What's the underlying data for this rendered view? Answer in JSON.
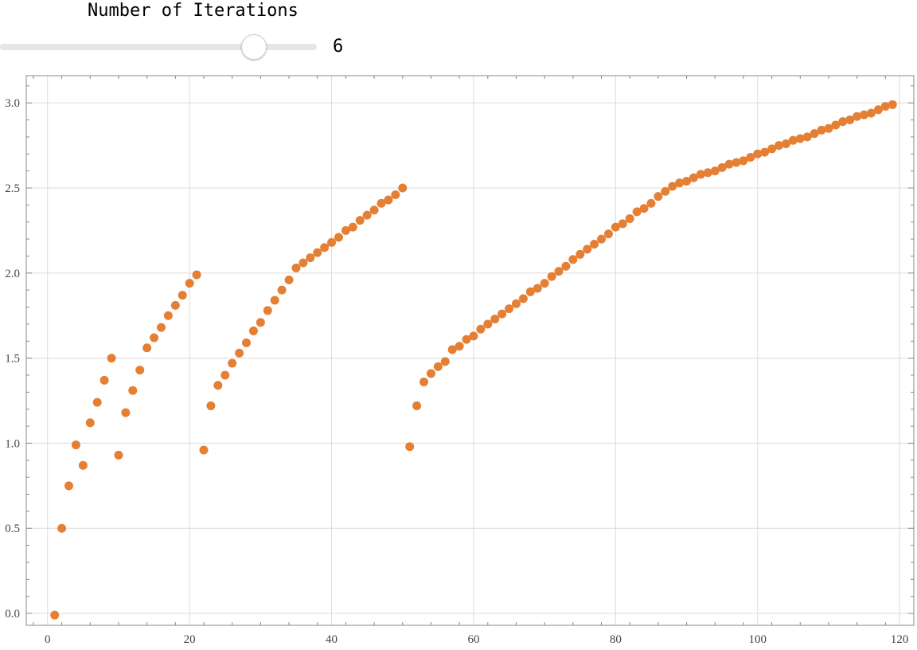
{
  "controls": {
    "slider_label": "Number of Iterations",
    "slider_value": "6",
    "slider_fraction": 0.8
  },
  "colors": {
    "points": "#e57f34",
    "grid": "#dcdcdc",
    "frame": "#888888"
  },
  "chart_data": {
    "type": "scatter",
    "title": "",
    "xlabel": "",
    "ylabel": "",
    "xlim": [
      -3,
      122
    ],
    "ylim": [
      -0.07,
      3.16
    ],
    "grid": true,
    "x_ticks": [
      0,
      20,
      40,
      60,
      80,
      100,
      120
    ],
    "y_ticks": [
      0.0,
      0.5,
      1.0,
      1.5,
      2.0,
      2.5,
      3.0
    ],
    "x_tick_labels": [
      "0",
      "20",
      "40",
      "60",
      "80",
      "100",
      "120"
    ],
    "y_tick_labels": [
      "0.0",
      "0.5",
      "1.0",
      "1.5",
      "2.0",
      "2.5",
      "3.0"
    ],
    "series": [
      {
        "x": [
          1,
          2,
          3,
          4,
          5,
          6,
          7,
          8,
          9,
          10,
          11,
          12,
          13,
          14,
          15,
          16,
          17,
          18,
          19,
          20,
          21,
          22,
          23,
          24,
          25,
          26,
          27,
          28,
          29,
          30,
          31,
          32,
          33,
          34,
          35,
          36,
          37,
          38,
          39,
          40,
          41,
          42,
          43,
          44,
          45,
          46,
          47,
          48,
          49,
          50,
          51,
          52,
          53,
          54,
          55,
          56,
          57,
          58,
          59,
          60,
          61,
          62,
          63,
          64,
          65,
          66,
          67,
          68,
          69,
          70,
          71,
          72,
          73,
          74,
          75,
          76,
          77,
          78,
          79,
          80,
          81,
          82,
          83,
          84,
          85,
          86,
          87,
          88,
          89,
          90,
          91,
          92,
          93,
          94,
          95,
          96,
          97,
          98,
          99,
          100,
          101,
          102,
          103,
          104,
          105,
          106,
          107,
          108,
          109,
          110,
          111,
          112,
          113,
          114,
          115,
          116,
          117,
          118,
          119
        ],
        "y": [
          -0.01,
          0.5,
          0.75,
          0.99,
          0.87,
          1.12,
          1.24,
          1.37,
          1.5,
          0.93,
          1.18,
          1.31,
          1.43,
          1.56,
          1.62,
          1.68,
          1.75,
          1.81,
          1.87,
          1.94,
          1.99,
          0.96,
          1.22,
          1.34,
          1.4,
          1.47,
          1.53,
          1.59,
          1.66,
          1.71,
          1.78,
          1.84,
          1.9,
          1.96,
          2.03,
          2.06,
          2.09,
          2.12,
          2.15,
          2.18,
          2.21,
          2.25,
          2.27,
          2.31,
          2.34,
          2.37,
          2.41,
          2.43,
          2.46,
          2.5,
          0.98,
          1.22,
          1.36,
          1.41,
          1.45,
          1.48,
          1.55,
          1.57,
          1.61,
          1.63,
          1.67,
          1.7,
          1.73,
          1.76,
          1.79,
          1.82,
          1.85,
          1.89,
          1.91,
          1.94,
          1.98,
          2.01,
          2.04,
          2.08,
          2.11,
          2.14,
          2.17,
          2.2,
          2.23,
          2.27,
          2.29,
          2.32,
          2.36,
          2.38,
          2.41,
          2.45,
          2.48,
          2.51,
          2.53,
          2.54,
          2.56,
          2.58,
          2.59,
          2.6,
          2.62,
          2.64,
          2.65,
          2.66,
          2.68,
          2.7,
          2.71,
          2.73,
          2.75,
          2.76,
          2.78,
          2.79,
          2.8,
          2.82,
          2.84,
          2.85,
          2.87,
          2.89,
          2.9,
          2.92,
          2.93,
          2.94,
          2.96,
          2.98,
          2.99
        ]
      }
    ]
  }
}
